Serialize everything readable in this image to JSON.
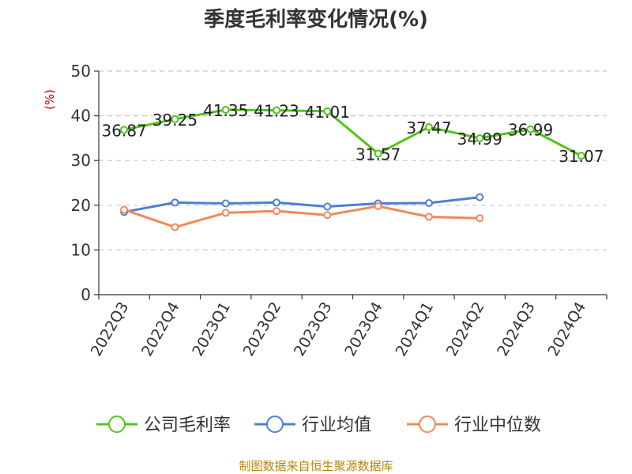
{
  "chart_data": {
    "type": "line",
    "title": "季度毛利率变化情况(%)",
    "ylabel": "(%)",
    "ylim": [
      0,
      50
    ],
    "yticks": [
      0,
      10,
      20,
      30,
      40,
      50
    ],
    "grid": true,
    "legend_position": "bottom",
    "categories": [
      "2022Q3",
      "2022Q4",
      "2023Q1",
      "2023Q2",
      "2023Q3",
      "2023Q4",
      "2024Q1",
      "2024Q2",
      "2024Q3",
      "2024Q4"
    ],
    "series": [
      {
        "name": "公司毛利率",
        "color": "#52c41a",
        "values": [
          36.87,
          39.25,
          41.35,
          41.23,
          41.01,
          31.57,
          37.47,
          34.99,
          36.99,
          31.07
        ],
        "labels": [
          "36.87",
          "39.25",
          "41.35",
          "41.23",
          "41.01",
          "31.57",
          "37.47",
          "34.99",
          "36.99",
          "31.07"
        ]
      },
      {
        "name": "行业均值",
        "color": "#4e7fd6",
        "values": [
          18.5,
          20.6,
          20.4,
          20.6,
          19.7,
          20.4,
          20.5,
          21.8,
          null,
          null
        ]
      },
      {
        "name": "行业中位数",
        "color": "#f0895a",
        "values": [
          19.0,
          15.1,
          18.3,
          18.7,
          17.8,
          19.8,
          17.4,
          17.1,
          null,
          null
        ]
      }
    ]
  },
  "source": "制图数据来自恒生聚源数据库"
}
